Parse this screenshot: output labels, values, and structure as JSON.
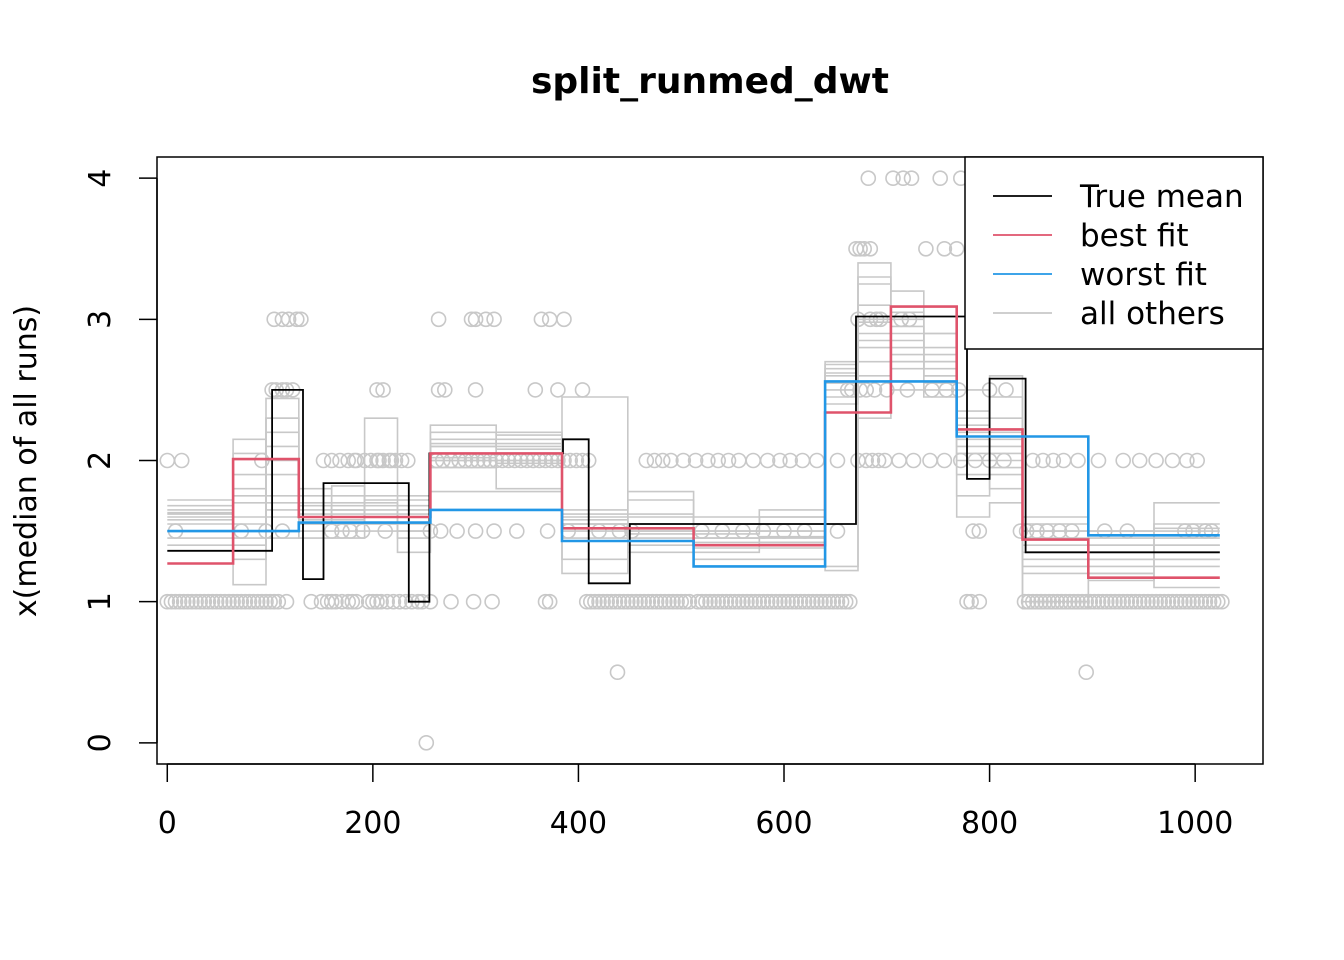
{
  "chart_data": {
    "type": "line",
    "title": "split_runmed_dwt",
    "xlabel": "",
    "ylabel": "x(median of all runs)",
    "xlim": [
      -10,
      1066
    ],
    "ylim": [
      -0.15,
      4.15
    ],
    "x_ticks": [
      "0",
      "200",
      "400",
      "600",
      "800",
      "1000"
    ],
    "y_ticks": [
      "0",
      "1",
      "2",
      "3",
      "4"
    ],
    "grid": false,
    "legend_position": "top-right",
    "legend": [
      {
        "label": "True mean",
        "color": "#000000"
      },
      {
        "label": "best fit",
        "color": "#DF536B"
      },
      {
        "label": "worst fit",
        "color": "#2297E6"
      },
      {
        "label": "all others",
        "color": "#C8C8C8"
      }
    ],
    "colors": {
      "true_mean": "#000000",
      "best_fit": "#DF536B",
      "worst_fit": "#2297E6",
      "others": "#C8C8C8",
      "points": "#C8C8C8"
    },
    "series": [
      {
        "name": "True mean",
        "color": "#000000",
        "x": [
          0,
          102,
          102,
          132,
          132,
          152,
          152,
          235,
          235,
          255,
          255,
          385,
          385,
          410,
          410,
          450,
          450,
          670,
          670,
          778,
          778,
          800,
          800,
          835,
          835,
          1024
        ],
        "y": [
          1.36,
          1.36,
          2.5,
          2.5,
          1.16,
          1.16,
          1.84,
          1.84,
          1.0,
          1.0,
          2.05,
          2.05,
          2.15,
          2.15,
          1.13,
          1.13,
          1.55,
          1.55,
          3.02,
          3.02,
          1.87,
          1.87,
          2.58,
          2.58,
          1.35,
          1.35
        ]
      },
      {
        "name": "best fit",
        "color": "#DF536B",
        "x": [
          0,
          64,
          64,
          128,
          128,
          256,
          256,
          384,
          384,
          512,
          512,
          640,
          640,
          704,
          704,
          768,
          768,
          832,
          832,
          896,
          896,
          1024
        ],
        "y": [
          1.27,
          1.27,
          2.01,
          2.01,
          1.6,
          1.6,
          2.05,
          2.05,
          1.52,
          1.52,
          1.4,
          1.4,
          2.34,
          2.34,
          3.09,
          3.09,
          2.22,
          2.22,
          1.44,
          1.44,
          1.17,
          1.17
        ]
      },
      {
        "name": "worst fit",
        "color": "#2297E6",
        "x": [
          0,
          128,
          128,
          256,
          256,
          384,
          384,
          512,
          512,
          640,
          640,
          768,
          768,
          896,
          896,
          1024
        ],
        "y": [
          1.5,
          1.5,
          1.56,
          1.56,
          1.65,
          1.65,
          1.43,
          1.43,
          1.25,
          1.25,
          2.56,
          2.56,
          2.17,
          2.17,
          1.47,
          1.47
        ]
      }
    ],
    "others_segments_x": [
      0,
      64,
      96,
      128,
      160,
      192,
      224,
      256,
      320,
      384,
      448,
      512,
      576,
      640,
      672,
      704,
      736,
      768,
      800,
      832,
      896,
      960,
      1024
    ],
    "others_levels": [
      [
        1.62,
        1.7,
        1.65,
        1.55,
        1.68,
        1.6,
        1.6,
        2.1,
        2.08,
        1.55,
        1.48,
        1.45,
        1.42,
        2.45,
        2.9,
        2.8,
        2.7,
        2.1,
        2.0,
        1.4,
        1.3,
        1.35
      ],
      [
        1.55,
        1.4,
        2.1,
        1.62,
        1.62,
        1.55,
        1.55,
        2.15,
        2.12,
        1.6,
        1.52,
        1.5,
        1.5,
        2.6,
        3.0,
        2.95,
        2.6,
        2.3,
        2.2,
        1.5,
        1.25,
        1.3
      ],
      [
        1.5,
        1.9,
        2.3,
        1.7,
        1.7,
        1.65,
        1.65,
        1.95,
        1.98,
        1.5,
        1.55,
        1.38,
        1.38,
        2.5,
        3.3,
        3.0,
        2.8,
        2.0,
        2.45,
        1.2,
        1.35,
        1.4
      ],
      [
        1.45,
        1.6,
        1.45,
        1.5,
        1.5,
        2.3,
        1.5,
        2.05,
        2.0,
        1.45,
        1.5,
        1.55,
        1.6,
        2.65,
        2.7,
        2.75,
        2.7,
        2.2,
        2.1,
        1.35,
        1.45,
        1.5
      ],
      [
        1.6,
        2.05,
        1.6,
        1.75,
        1.75,
        1.7,
        1.35,
        2.2,
        2.18,
        1.3,
        1.62,
        1.45,
        1.45,
        2.7,
        3.25,
        2.9,
        2.5,
        1.9,
        1.9,
        1.3,
        1.2,
        1.25
      ],
      [
        1.65,
        1.3,
        2.44,
        1.65,
        1.65,
        1.6,
        1.6,
        2.0,
        2.2,
        1.55,
        1.45,
        1.6,
        1.55,
        1.25,
        2.6,
        2.65,
        2.9,
        2.5,
        2.05,
        1.5,
        1.4,
        1.7
      ],
      [
        1.4,
        1.12,
        1.9,
        1.45,
        1.45,
        1.5,
        1.5,
        2.25,
        1.8,
        2.45,
        1.35,
        1.3,
        1.3,
        2.55,
        2.85,
        2.7,
        2.6,
        1.6,
        1.7,
        1.0,
        1.5,
        1.55
      ],
      [
        1.68,
        1.55,
        1.75,
        1.8,
        1.6,
        1.75,
        1.75,
        2.12,
        2.1,
        1.65,
        1.72,
        1.5,
        1.65,
        2.4,
        3.4,
        3.2,
        2.9,
        2.35,
        2.15,
        1.6,
        1.3,
        1.45
      ],
      [
        1.58,
        2.15,
        2.0,
        1.58,
        1.58,
        1.72,
        1.72,
        2.0,
        2.05,
        1.58,
        1.4,
        1.42,
        1.42,
        1.22,
        2.3,
        2.5,
        2.55,
        2.25,
        1.8,
        0.95,
        1.2,
        1.1
      ],
      [
        1.72,
        1.75,
        2.2,
        1.55,
        1.82,
        1.62,
        1.62,
        1.78,
        1.78,
        1.62,
        1.78,
        1.55,
        1.5,
        2.68,
        2.98,
        3.05,
        2.75,
        2.05,
        2.3,
        1.45,
        1.5,
        1.52
      ],
      [
        1.5,
        1.45,
        1.7,
        1.6,
        1.65,
        1.55,
        1.45,
        2.1,
        2.15,
        1.2,
        1.6,
        1.48,
        1.6,
        2.62,
        2.8,
        2.85,
        2.65,
        1.75,
        1.95,
        1.55,
        1.4,
        1.3
      ],
      [
        1.63,
        1.8,
        2.3,
        1.68,
        1.55,
        1.68,
        1.68,
        2.02,
        2.0,
        1.55,
        1.5,
        1.35,
        1.46,
        2.55,
        3.1,
        2.7,
        2.45,
        2.15,
        2.6,
        1.25,
        1.15,
        1.4
      ]
    ],
    "points": [
      {
        "xs": [
          0,
          12,
          24,
          36,
          48,
          60,
          72,
          84,
          96,
          104,
          116,
          140,
          156,
          170,
          184,
          200,
          214,
          226,
          238,
          244,
          256,
          408,
          420,
          432,
          444,
          456,
          468,
          480,
          492,
          504,
          516,
          528,
          540,
          552,
          564,
          576,
          588,
          600,
          612,
          624,
          636,
          648,
          660,
          834,
          846,
          858,
          870,
          882,
          894,
          906,
          918,
          930,
          942,
          954,
          966,
          978,
          990,
          1002,
          1014,
          1026
        ],
        "y": 1
      },
      {
        "xs": [
          4,
          8,
          16,
          20,
          28,
          32,
          40,
          44,
          52,
          56,
          64,
          68,
          76,
          80,
          88,
          92,
          100,
          108,
          150,
          160,
          164,
          176,
          180,
          196,
          204,
          208,
          220,
          232,
          248,
          412,
          416,
          424,
          428,
          436,
          440,
          448,
          452,
          460,
          464,
          472,
          476,
          484,
          488,
          496,
          500,
          508,
          520,
          524,
          532,
          536,
          544,
          548,
          556,
          560,
          568,
          572,
          580,
          584,
          592,
          596,
          604,
          608,
          616,
          620,
          628,
          632,
          640,
          644,
          652,
          656,
          664,
          838,
          842,
          850,
          854,
          862,
          866,
          874,
          878,
          886,
          890,
          898,
          902,
          910,
          914,
          922,
          926,
          934,
          938,
          946,
          950,
          958,
          962,
          970,
          974,
          982,
          986,
          994,
          998,
          1006,
          1010,
          1018,
          1022,
          276,
          298,
          316,
          368,
          372,
          778,
          782,
          790
        ],
        "y": 1
      },
      {
        "xs": [
          0,
          14,
          92,
          152,
          160,
          168,
          176,
          184,
          192,
          198,
          204,
          210,
          216,
          222,
          228,
          234,
          262,
          268,
          276,
          284,
          290,
          296,
          302,
          308,
          314,
          320,
          326,
          332,
          338,
          344,
          350,
          356,
          362,
          368,
          374,
          380,
          386,
          392,
          398,
          404,
          410,
          466,
          474,
          482,
          490,
          502,
          514,
          526,
          536,
          546,
          556,
          570,
          584,
          596,
          606,
          618,
          632,
          652,
          672,
          680,
          686,
          692,
          698,
          712,
          726,
          742,
          756,
          772,
          786,
          800,
          814,
          842,
          852,
          862,
          872,
          886,
          906,
          930,
          946,
          962,
          978,
          992,
          1002,
          182,
          206,
          218
        ],
        "y": 2
      },
      {
        "xs": [
          8,
          72,
          96,
          112,
          160,
          170,
          178,
          190,
          212,
          256,
          266,
          282,
          300,
          318,
          340,
          370,
          390,
          420,
          440,
          452,
          520,
          540,
          560,
          580,
          600,
          620,
          652,
          784,
          790,
          830,
          836,
          846,
          856,
          868,
          880,
          912,
          934,
          990,
          998,
          1010,
          1016
        ],
        "y": 1.5
      },
      {
        "xs": [
          102,
          106,
          112,
          116,
          122,
          204,
          210,
          264,
          270,
          300,
          358,
          380,
          404,
          662,
          666,
          674,
          680,
          688,
          700,
          720,
          744,
          758,
          770,
          800,
          816
        ],
        "y": 2.5
      },
      {
        "xs": [
          104,
          112,
          118,
          126,
          130,
          264,
          296,
          300,
          310,
          318,
          364,
          372,
          386,
          672,
          684,
          690,
          694,
          714,
          722
        ],
        "y": 3
      },
      {
        "xs": [
          670,
          674,
          678,
          684,
          738,
          756,
          768
        ],
        "y": 3.5
      },
      {
        "xs": [
          682,
          706,
          716,
          724,
          752,
          772,
          790
        ],
        "y": 4
      },
      {
        "xs": [
          438,
          894
        ],
        "y": 0.5
      },
      {
        "xs": [
          252
        ],
        "y": 0
      }
    ]
  }
}
